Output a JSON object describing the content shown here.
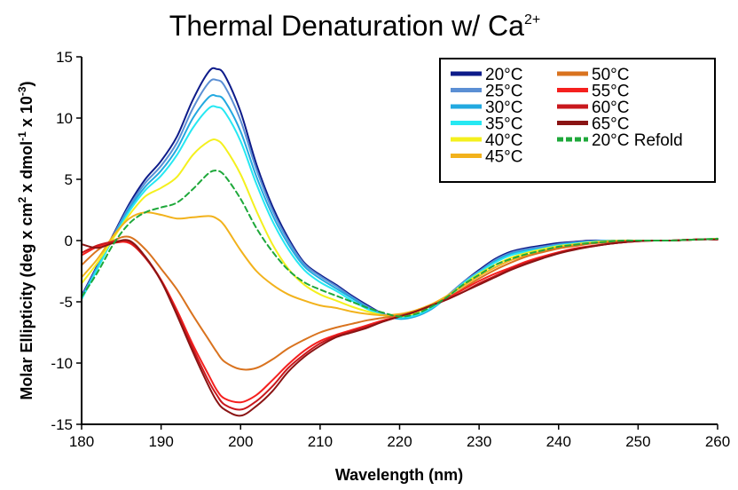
{
  "chart_data": {
    "type": "line",
    "title": "Thermal Denaturation w/ Ca",
    "title_superscript": "2+",
    "xlabel": "Wavelength (nm)",
    "ylabel": {
      "p1": "Molar Ellipticity (deg x cm",
      "s1": "2",
      "p2": " x dmol",
      "s2": "-1",
      "p3": " x 10",
      "s3": "-3",
      "p4": ")"
    },
    "xlim": [
      180,
      260
    ],
    "ylim": [
      -15,
      15
    ],
    "xticks": [
      "180",
      "190",
      "200",
      "210",
      "220",
      "230",
      "240",
      "250",
      "260"
    ],
    "yticks": [
      "15",
      "10",
      "5",
      "0",
      "-5",
      "-10",
      "-15"
    ],
    "grid": false,
    "legend_position": "top-right",
    "x": [
      180,
      182,
      184,
      186,
      188,
      190,
      192,
      194,
      196,
      197,
      198,
      200,
      202,
      204,
      206,
      208,
      210,
      212,
      214,
      216,
      218,
      220,
      222,
      224,
      226,
      228,
      230,
      232,
      234,
      236,
      238,
      240,
      242,
      244,
      246,
      248,
      250,
      252,
      254,
      256,
      258,
      260
    ],
    "series": [
      {
        "name": "20°C",
        "color": "#0d1b8a",
        "dashed": false,
        "values": [
          -4.5,
          -2.0,
          0.5,
          3.0,
          5.0,
          6.5,
          8.5,
          11.5,
          13.8,
          14.0,
          13.5,
          10.5,
          6.2,
          2.8,
          0.2,
          -1.8,
          -2.8,
          -3.6,
          -4.5,
          -5.3,
          -6.0,
          -6.3,
          -6.1,
          -5.5,
          -4.5,
          -3.4,
          -2.4,
          -1.5,
          -0.9,
          -0.6,
          -0.4,
          -0.2,
          -0.1,
          0.0,
          0.0,
          0.0,
          0.0,
          0.0,
          0.0,
          0.05,
          0.1,
          0.1
        ]
      },
      {
        "name": "25°C",
        "color": "#5b8fd4",
        "dashed": false,
        "values": [
          -4.6,
          -2.1,
          0.4,
          2.8,
          4.7,
          6.1,
          8.0,
          10.8,
          12.9,
          13.1,
          12.6,
          9.8,
          5.8,
          2.5,
          0.0,
          -1.9,
          -2.9,
          -3.7,
          -4.6,
          -5.4,
          -6.0,
          -6.3,
          -6.1,
          -5.5,
          -4.5,
          -3.4,
          -2.5,
          -1.6,
          -1.0,
          -0.7,
          -0.5,
          -0.3,
          -0.15,
          -0.05,
          0.0,
          0.0,
          0.0,
          0.0,
          0.0,
          0.05,
          0.1,
          0.1
        ]
      },
      {
        "name": "30°C",
        "color": "#22a9e0",
        "dashed": false,
        "values": [
          -4.7,
          -2.2,
          0.3,
          2.6,
          4.4,
          5.7,
          7.5,
          10.0,
          11.7,
          11.8,
          11.4,
          8.9,
          5.2,
          2.1,
          -0.3,
          -2.1,
          -3.1,
          -3.9,
          -4.7,
          -5.5,
          -6.1,
          -6.4,
          -6.2,
          -5.6,
          -4.6,
          -3.5,
          -2.6,
          -1.7,
          -1.1,
          -0.8,
          -0.6,
          -0.35,
          -0.2,
          -0.1,
          0.0,
          0.0,
          0.0,
          0.0,
          0.0,
          0.05,
          0.1,
          0.1
        ]
      },
      {
        "name": "35°C",
        "color": "#26e8f2",
        "dashed": false,
        "values": [
          -4.8,
          -2.3,
          0.2,
          2.4,
          4.1,
          5.3,
          7.0,
          9.2,
          10.8,
          10.9,
          10.5,
          8.1,
          4.6,
          1.6,
          -0.7,
          -2.4,
          -3.4,
          -4.1,
          -4.9,
          -5.6,
          -6.1,
          -6.3,
          -6.1,
          -5.5,
          -4.6,
          -3.5,
          -2.6,
          -1.8,
          -1.2,
          -0.9,
          -0.65,
          -0.4,
          -0.25,
          -0.1,
          -0.05,
          0.0,
          0.0,
          0.0,
          0.0,
          0.05,
          0.1,
          0.15
        ]
      },
      {
        "name": "40°C",
        "color": "#f4f01e",
        "dashed": false,
        "values": [
          -3.5,
          -1.8,
          0.2,
          2.1,
          3.6,
          4.3,
          5.2,
          7.0,
          8.1,
          8.2,
          7.6,
          5.4,
          2.4,
          -0.3,
          -2.3,
          -3.6,
          -4.4,
          -4.9,
          -5.4,
          -5.8,
          -6.1,
          -6.2,
          -5.9,
          -5.3,
          -4.5,
          -3.6,
          -2.7,
          -2.0,
          -1.4,
          -1.0,
          -0.7,
          -0.45,
          -0.3,
          -0.15,
          -0.05,
          0.0,
          0.0,
          0.0,
          0.0,
          0.05,
          0.1,
          0.15
        ]
      },
      {
        "name": "45°C",
        "color": "#f2b21c",
        "dashed": false,
        "values": [
          -3.0,
          -1.5,
          0.4,
          1.8,
          2.3,
          2.1,
          1.8,
          1.9,
          2.0,
          1.8,
          1.2,
          -0.8,
          -2.5,
          -3.6,
          -4.4,
          -4.9,
          -5.3,
          -5.5,
          -5.8,
          -6.0,
          -6.1,
          -6.0,
          -5.7,
          -5.2,
          -4.5,
          -3.7,
          -2.9,
          -2.2,
          -1.6,
          -1.2,
          -0.85,
          -0.55,
          -0.35,
          -0.2,
          -0.1,
          0.0,
          0.0,
          0.0,
          0.0,
          0.05,
          0.1,
          0.1
        ]
      },
      {
        "name": "50°C",
        "color": "#d9731f",
        "dashed": false,
        "values": [
          -2.0,
          -0.8,
          0.0,
          0.3,
          -0.7,
          -2.3,
          -4.0,
          -6.1,
          -8.1,
          -9.1,
          -9.9,
          -10.5,
          -10.4,
          -9.7,
          -8.8,
          -8.1,
          -7.5,
          -7.1,
          -6.8,
          -6.5,
          -6.3,
          -6.1,
          -5.8,
          -5.3,
          -4.7,
          -3.9,
          -3.1,
          -2.4,
          -1.8,
          -1.3,
          -0.95,
          -0.65,
          -0.45,
          -0.25,
          -0.15,
          -0.05,
          0.0,
          0.0,
          0.0,
          0.05,
          0.1,
          0.1
        ]
      },
      {
        "name": "55°C",
        "color": "#f5201e",
        "dashed": false,
        "values": [
          -1.2,
          -0.5,
          -0.2,
          -0.2,
          -1.4,
          -3.2,
          -5.7,
          -8.5,
          -11.0,
          -12.2,
          -12.9,
          -13.2,
          -12.6,
          -11.4,
          -10.1,
          -9.0,
          -8.2,
          -7.7,
          -7.3,
          -6.9,
          -6.5,
          -6.2,
          -5.8,
          -5.3,
          -4.7,
          -4.0,
          -3.3,
          -2.7,
          -2.2,
          -1.7,
          -1.3,
          -0.95,
          -0.65,
          -0.45,
          -0.3,
          -0.15,
          -0.05,
          0.0,
          0.0,
          0.05,
          0.1,
          0.1
        ]
      },
      {
        "name": "60°C",
        "color": "#c9181d",
        "dashed": false,
        "values": [
          -1.0,
          -0.4,
          -0.1,
          -0.1,
          -1.4,
          -3.3,
          -5.9,
          -8.8,
          -11.5,
          -12.6,
          -13.4,
          -13.8,
          -13.1,
          -11.9,
          -10.4,
          -9.3,
          -8.4,
          -7.8,
          -7.4,
          -7.0,
          -6.6,
          -6.2,
          -5.8,
          -5.3,
          -4.8,
          -4.2,
          -3.5,
          -2.9,
          -2.3,
          -1.8,
          -1.4,
          -1.0,
          -0.7,
          -0.5,
          -0.3,
          -0.15,
          -0.05,
          0.0,
          0.0,
          0.05,
          0.1,
          0.1
        ]
      },
      {
        "name": "65°C",
        "color": "#8a1414",
        "dashed": false,
        "values": [
          -0.3,
          -0.6,
          -0.2,
          0.0,
          -1.3,
          -3.3,
          -6.1,
          -9.1,
          -11.9,
          -13.1,
          -13.8,
          -14.3,
          -13.5,
          -12.3,
          -10.7,
          -9.5,
          -8.6,
          -7.9,
          -7.5,
          -7.1,
          -6.6,
          -6.2,
          -5.8,
          -5.3,
          -4.8,
          -4.2,
          -3.6,
          -3.0,
          -2.4,
          -1.9,
          -1.45,
          -1.05,
          -0.75,
          -0.5,
          -0.3,
          -0.15,
          -0.05,
          0.0,
          0.0,
          0.05,
          0.1,
          0.1
        ]
      },
      {
        "name": "20°C Refold",
        "color": "#1ea83a",
        "dashed": true,
        "values": [
          -4.6,
          -2.6,
          -0.3,
          1.4,
          2.3,
          2.7,
          3.1,
          4.2,
          5.5,
          5.7,
          5.3,
          3.4,
          1.0,
          -0.9,
          -2.4,
          -3.4,
          -4.0,
          -4.5,
          -5.0,
          -5.5,
          -5.9,
          -6.2,
          -6.0,
          -5.4,
          -4.6,
          -3.6,
          -2.8,
          -2.0,
          -1.5,
          -1.1,
          -0.8,
          -0.5,
          -0.35,
          -0.2,
          -0.1,
          0.0,
          0.0,
          0.0,
          0.0,
          0.05,
          0.1,
          0.15
        ]
      }
    ]
  }
}
